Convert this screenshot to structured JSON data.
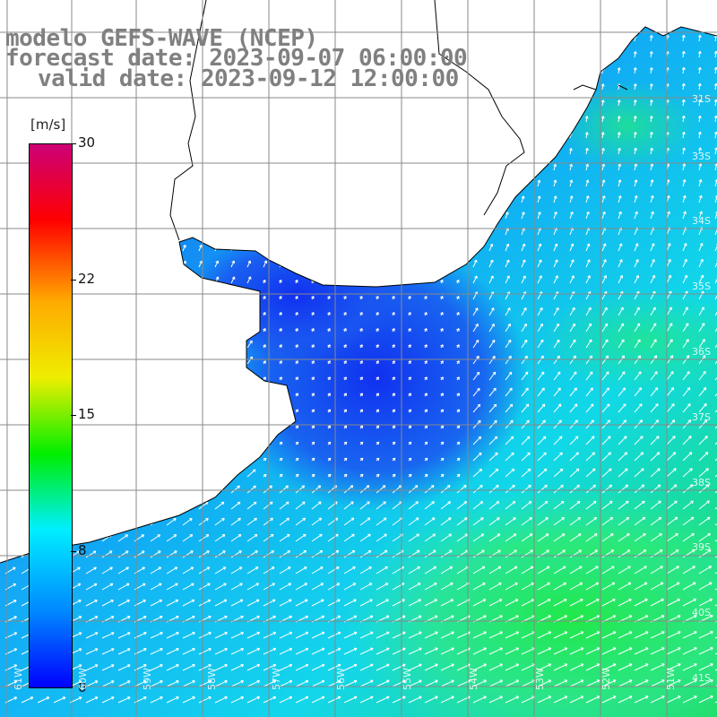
{
  "header": {
    "title_line1": "modelo GEFS-WAVE (NCEP)",
    "title_line2": "forecast date: 2023-09-07 06:00:00",
    "title_line3": "valid date: 2023-09-12 12:00:00"
  },
  "colorbar": {
    "unit": "[m/s]",
    "ticks": [
      "30",
      "22",
      "15",
      "8",
      "0"
    ],
    "min": 0,
    "max": 30,
    "colors": [
      "#0000ff",
      "#0088ff",
      "#00eeff",
      "#00ee00",
      "#eeee00",
      "#ffaa00",
      "#ff0000",
      "#cc0077"
    ]
  },
  "map": {
    "land_color": "#ffffff",
    "grid_color": "#888888",
    "arrow_color": "#ffffff",
    "lat_labels": [
      "31S",
      "33S",
      "34S",
      "35S",
      "36S",
      "37S",
      "38S",
      "39S",
      "40S",
      "41S"
    ],
    "lon_labels": [
      "61W",
      "60W",
      "59W",
      "58W",
      "57W",
      "56W",
      "55W",
      "54W",
      "53W",
      "52W",
      "51W"
    ]
  },
  "chart_data": {
    "type": "heatmap",
    "title": "modelo GEFS-WAVE (NCEP)",
    "field": "wind speed with direction arrows",
    "unit": "[m/s]",
    "color_range": [
      0,
      30
    ],
    "xlim": [
      "61W",
      "51W"
    ],
    "ylim": [
      "41S",
      "31S"
    ]
  }
}
